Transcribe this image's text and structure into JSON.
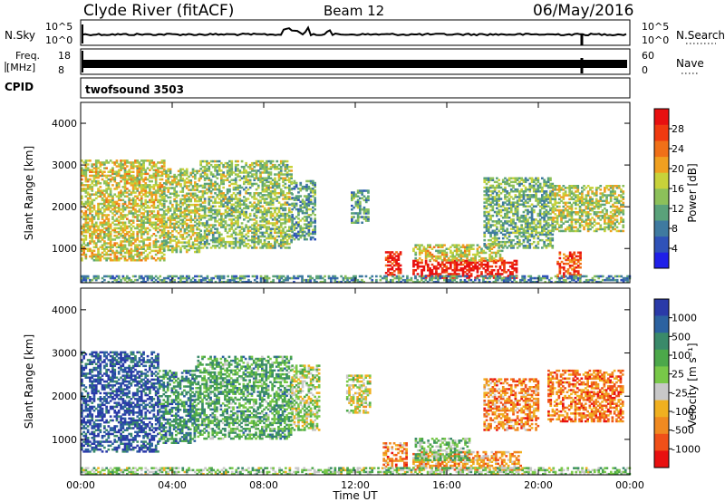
{
  "header": {
    "station": "Clyde River (fitACF)",
    "beam": "Beam 12",
    "date": "06/May/2016"
  },
  "noise_panel": {
    "left_label": "N.Sky",
    "right_label": "N.Search",
    "left_ticks": [
      "10^5",
      "10^0"
    ],
    "right_ticks": [
      "10^5",
      "10^0"
    ]
  },
  "freq_panel": {
    "left_label_line1": "Freq.",
    "left_label_line2": "[MHz]",
    "right_label": "Nave",
    "left_ticks": [
      "18",
      "8"
    ],
    "right_ticks": [
      "60",
      "0"
    ]
  },
  "cpid": {
    "label": "CPID",
    "value": "twofsound 3503"
  },
  "chart_data": [
    {
      "type": "heatmap",
      "parameter": "Power",
      "ylabel": "Slant Range [km]",
      "ylim": [
        180,
        4500
      ],
      "yticks": [
        "1000",
        "2000",
        "3000",
        "4000"
      ],
      "xlim": [
        0,
        24
      ],
      "colorbar": {
        "label": "Power [dB]",
        "ticks": [
          "4",
          "8",
          "12",
          "16",
          "20",
          "24",
          "28"
        ],
        "colors": [
          "#1f1fe8",
          "#2f52b8",
          "#3f7aa0",
          "#5aa27a",
          "#8cc05a",
          "#c8d23a",
          "#f0a020",
          "#f07018",
          "#f03a10",
          "#e81010"
        ]
      },
      "echo_regions": [
        {
          "t": [
            0.0,
            3.6
          ],
          "r": [
            700,
            3100
          ],
          "level": 0.55
        },
        {
          "t": [
            3.6,
            5.2
          ],
          "r": [
            900,
            2900
          ],
          "level": 0.5
        },
        {
          "t": [
            5.2,
            9.2
          ],
          "r": [
            1000,
            3100
          ],
          "level": 0.45
        },
        {
          "t": [
            9.2,
            10.2
          ],
          "r": [
            1200,
            2600
          ],
          "level": 0.35
        },
        {
          "t": [
            11.8,
            12.6
          ],
          "r": [
            1600,
            2400
          ],
          "level": 0.35
        },
        {
          "t": [
            13.3,
            14.0
          ],
          "r": [
            350,
            900
          ],
          "level": 0.9
        },
        {
          "t": [
            14.5,
            19.0
          ],
          "r": [
            280,
            700
          ],
          "level": 0.95
        },
        {
          "t": [
            14.5,
            18.4
          ],
          "r": [
            700,
            1100
          ],
          "level": 0.55
        },
        {
          "t": [
            17.6,
            20.6
          ],
          "r": [
            1000,
            2700
          ],
          "level": 0.4
        },
        {
          "t": [
            20.6,
            23.7
          ],
          "r": [
            1400,
            2500
          ],
          "level": 0.5
        },
        {
          "t": [
            20.8,
            21.8
          ],
          "r": [
            300,
            900
          ],
          "level": 0.8
        },
        {
          "t": [
            0.0,
            24.0
          ],
          "r": [
            180,
            320
          ],
          "level": 0.3
        }
      ]
    },
    {
      "type": "heatmap",
      "parameter": "Velocity",
      "ylabel": "Slant Range [km]",
      "ylim": [
        180,
        4500
      ],
      "yticks": [
        "1000",
        "2000",
        "3000",
        "4000"
      ],
      "xlim": [
        0,
        24
      ],
      "xticks": [
        "00:00",
        "04:00",
        "08:00",
        "12:00",
        "16:00",
        "20:00",
        "00:00"
      ],
      "xlabel": "Time UT",
      "colorbar": {
        "label": "Velocity [m s⁻¹]",
        "ticks": [
          "1000",
          "500",
          "100",
          "25",
          "-25",
          "-100",
          "-500",
          "-1000"
        ],
        "colors": [
          "#2a3aa8",
          "#2c62a0",
          "#3a8a6a",
          "#4ca84a",
          "#78c848",
          "#c8c8c8",
          "#f0b020",
          "#f08a20",
          "#f05018",
          "#e81010"
        ]
      },
      "echo_regions": [
        {
          "t": [
            0.0,
            3.4
          ],
          "r": [
            700,
            3000
          ],
          "level": 0.1
        },
        {
          "t": [
            3.4,
            5.0
          ],
          "r": [
            900,
            2600
          ],
          "level": 0.25
        },
        {
          "t": [
            5.0,
            9.2
          ],
          "r": [
            1000,
            2900
          ],
          "level": 0.35
        },
        {
          "t": [
            9.2,
            10.4
          ],
          "r": [
            1200,
            2700
          ],
          "level": 0.5
        },
        {
          "t": [
            11.6,
            12.6
          ],
          "r": [
            1600,
            2500
          ],
          "level": 0.55
        },
        {
          "t": [
            13.2,
            14.2
          ],
          "r": [
            350,
            900
          ],
          "level": 0.75
        },
        {
          "t": [
            14.5,
            19.2
          ],
          "r": [
            280,
            700
          ],
          "level": 0.7
        },
        {
          "t": [
            14.6,
            17.0
          ],
          "r": [
            500,
            1000
          ],
          "level": 0.4
        },
        {
          "t": [
            17.6,
            20.0
          ],
          "r": [
            1200,
            2400
          ],
          "level": 0.75
        },
        {
          "t": [
            20.4,
            23.7
          ],
          "r": [
            1400,
            2600
          ],
          "level": 0.78
        },
        {
          "t": [
            0.0,
            24.0
          ],
          "r": [
            180,
            320
          ],
          "level": 0.45
        }
      ]
    }
  ]
}
